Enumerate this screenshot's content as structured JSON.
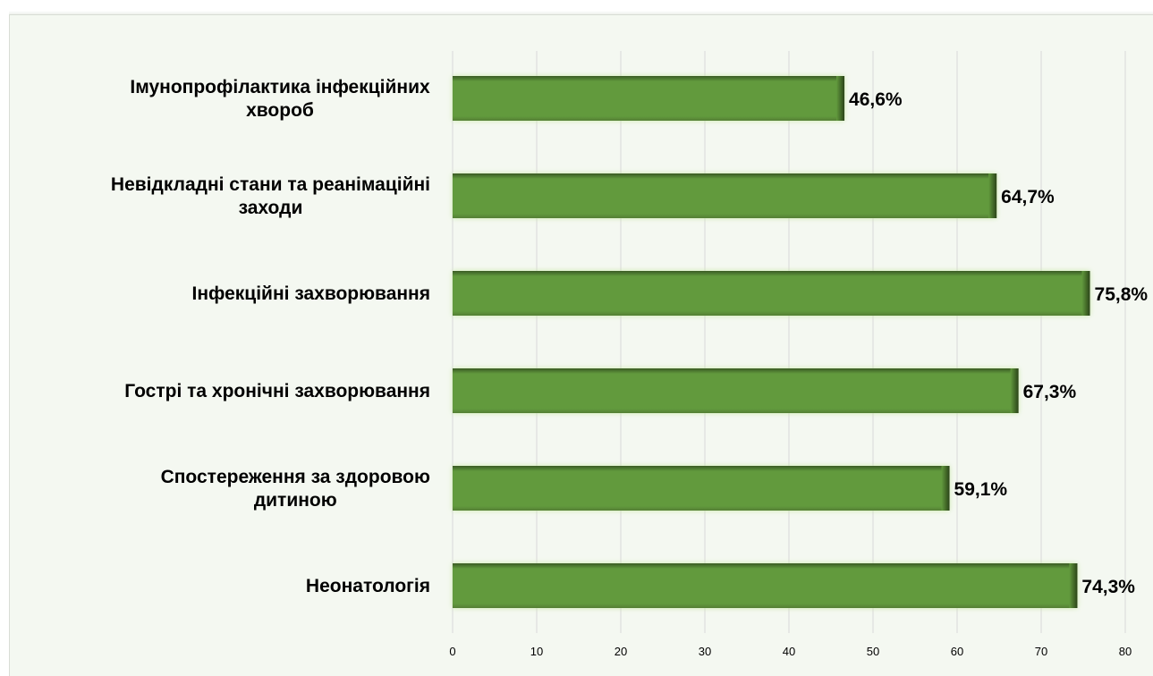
{
  "chart_data": {
    "type": "bar",
    "orientation": "horizontal",
    "categories": [
      [
        "Імунопрофілактика інфекційних",
        "хвороб"
      ],
      [
        "Невідкладні стани та реанімаційні",
        "заходи"
      ],
      [
        "Інфекційні захворювання"
      ],
      [
        "Гострі та хронічні захворювання"
      ],
      [
        "Спостереження за здоровою",
        "дитиною"
      ],
      [
        "Неонатологія"
      ]
    ],
    "values": [
      46.6,
      64.7,
      75.8,
      67.3,
      59.1,
      74.3
    ],
    "value_labels": [
      "46,6%",
      "64,7%",
      "75,8%",
      "67,3%",
      "59,1%",
      "74,3%"
    ],
    "xlim": [
      0,
      80
    ],
    "x_ticks": [
      0,
      10,
      20,
      30,
      40,
      50,
      60,
      70,
      80
    ],
    "grid": true,
    "colors": {
      "bar": "#629a3d",
      "bar_edge": "#2f4a1d",
      "grid": "#d9d9d9",
      "background": "#f4f8f1"
    }
  }
}
